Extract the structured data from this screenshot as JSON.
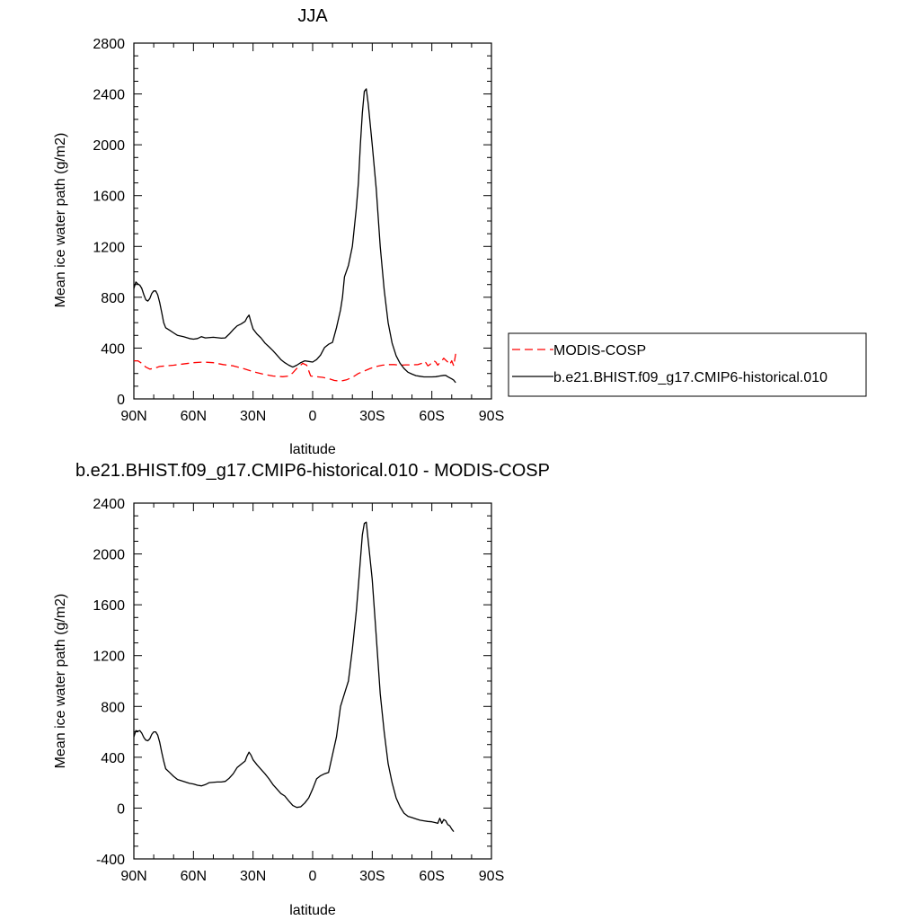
{
  "chart_data": [
    {
      "type": "line",
      "title": "JJA",
      "xlabel": "latitude",
      "ylabel": "Mean ice water path (g/m2)",
      "xlim": [
        90,
        -90
      ],
      "ylim": [
        0,
        2800
      ],
      "x_ticks": [
        {
          "value": 90,
          "label": "90N"
        },
        {
          "value": 60,
          "label": "60N"
        },
        {
          "value": 30,
          "label": "30N"
        },
        {
          "value": 0,
          "label": "0"
        },
        {
          "value": -30,
          "label": "30S"
        },
        {
          "value": -60,
          "label": "60S"
        },
        {
          "value": -90,
          "label": "90S"
        }
      ],
      "y_ticks": [
        0,
        400,
        800,
        1200,
        1600,
        2000,
        2400,
        2800
      ],
      "grid": false,
      "legend": {
        "position": "right"
      },
      "series": [
        {
          "name": "MODIS-COSP",
          "color": "#ff0000",
          "dash": "dashed",
          "points": [
            [
              90,
              300
            ],
            [
              88,
              300
            ],
            [
              86,
              280
            ],
            [
              84,
              250
            ],
            [
              82,
              235
            ],
            [
              80,
              240
            ],
            [
              77,
              255
            ],
            [
              70,
              265
            ],
            [
              60,
              285
            ],
            [
              55,
              290
            ],
            [
              50,
              285
            ],
            [
              45,
              270
            ],
            [
              40,
              260
            ],
            [
              35,
              240
            ],
            [
              30,
              215
            ],
            [
              25,
              195
            ],
            [
              20,
              180
            ],
            [
              15,
              175
            ],
            [
              12,
              180
            ],
            [
              10,
              205
            ],
            [
              8,
              240
            ],
            [
              5,
              280
            ],
            [
              3,
              265
            ],
            [
              1,
              180
            ],
            [
              -2,
              175
            ],
            [
              -5,
              170
            ],
            [
              -8,
              160
            ],
            [
              -11,
              145
            ],
            [
              -14,
              140
            ],
            [
              -17,
              150
            ],
            [
              -20,
              170
            ],
            [
              -23,
              200
            ],
            [
              -26,
              220
            ],
            [
              -29,
              240
            ],
            [
              -32,
              255
            ],
            [
              -35,
              265
            ],
            [
              -38,
              270
            ],
            [
              -41,
              270
            ],
            [
              -44,
              265
            ],
            [
              -47,
              268
            ],
            [
              -50,
              268
            ],
            [
              -53,
              270
            ],
            [
              -55,
              280
            ],
            [
              -56,
              295
            ],
            [
              -57,
              285
            ],
            [
              -58,
              260
            ],
            [
              -59,
              270
            ],
            [
              -61,
              300
            ],
            [
              -62,
              290
            ],
            [
              -63,
              265
            ],
            [
              -64,
              285
            ],
            [
              -65,
              300
            ],
            [
              -66,
              320
            ],
            [
              -67,
              305
            ],
            [
              -68,
              290
            ],
            [
              -69,
              270
            ],
            [
              -70,
              300
            ],
            [
              -71,
              260
            ],
            [
              -72,
              355
            ]
          ]
        },
        {
          "name": "b.e21.BHIST.f09_g17.CMIP6-historical.010",
          "color": "#000000",
          "dash": "solid",
          "points": [
            [
              90,
              870
            ],
            [
              89,
              920
            ],
            [
              88,
              905
            ],
            [
              87,
              895
            ],
            [
              86,
              870
            ],
            [
              85,
              820
            ],
            [
              84,
              780
            ],
            [
              83,
              770
            ],
            [
              82,
              790
            ],
            [
              81,
              830
            ],
            [
              80,
              850
            ],
            [
              79,
              850
            ],
            [
              78,
              820
            ],
            [
              77,
              760
            ],
            [
              76,
              680
            ],
            [
              75,
              600
            ],
            [
              74,
              560
            ],
            [
              72,
              540
            ],
            [
              70,
              520
            ],
            [
              68,
              500
            ],
            [
              65,
              490
            ],
            [
              62,
              475
            ],
            [
              60,
              470
            ],
            [
              58,
              475
            ],
            [
              56,
              490
            ],
            [
              54,
              480
            ],
            [
              50,
              485
            ],
            [
              46,
              478
            ],
            [
              44,
              480
            ],
            [
              42,
              510
            ],
            [
              40,
              545
            ],
            [
              38,
              575
            ],
            [
              36,
              590
            ],
            [
              34,
              610
            ],
            [
              33,
              640
            ],
            [
              32,
              660
            ],
            [
              31,
              600
            ],
            [
              30,
              550
            ],
            [
              28,
              510
            ],
            [
              26,
              480
            ],
            [
              24,
              440
            ],
            [
              22,
              410
            ],
            [
              20,
              380
            ],
            [
              18,
              345
            ],
            [
              16,
              310
            ],
            [
              14,
              285
            ],
            [
              12,
              265
            ],
            [
              10,
              250
            ],
            [
              8,
              265
            ],
            [
              6,
              285
            ],
            [
              4,
              300
            ],
            [
              2,
              295
            ],
            [
              0,
              290
            ],
            [
              -2,
              310
            ],
            [
              -4,
              345
            ],
            [
              -6,
              405
            ],
            [
              -8,
              430
            ],
            [
              -10,
              445
            ],
            [
              -12,
              560
            ],
            [
              -14,
              700
            ],
            [
              -15,
              800
            ],
            [
              -16,
              960
            ],
            [
              -18,
              1050
            ],
            [
              -20,
              1200
            ],
            [
              -22,
              1500
            ],
            [
              -23,
              1700
            ],
            [
              -24,
              2000
            ],
            [
              -25,
              2250
            ],
            [
              -26,
              2420
            ],
            [
              -27,
              2440
            ],
            [
              -28,
              2320
            ],
            [
              -30,
              2000
            ],
            [
              -32,
              1650
            ],
            [
              -34,
              1200
            ],
            [
              -36,
              860
            ],
            [
              -38,
              600
            ],
            [
              -40,
              440
            ],
            [
              -42,
              340
            ],
            [
              -44,
              280
            ],
            [
              -46,
              240
            ],
            [
              -48,
              210
            ],
            [
              -50,
              195
            ],
            [
              -52,
              183
            ],
            [
              -54,
              178
            ],
            [
              -56,
              173
            ],
            [
              -58,
              173
            ],
            [
              -60,
              173
            ],
            [
              -62,
              175
            ],
            [
              -64,
              180
            ],
            [
              -66,
              185
            ],
            [
              -67,
              185
            ],
            [
              -68,
              175
            ],
            [
              -70,
              158
            ],
            [
              -71,
              148
            ],
            [
              -72,
              128
            ]
          ]
        }
      ]
    },
    {
      "type": "line",
      "title": "b.e21.BHIST.f09_g17.CMIP6-historical.010 - MODIS-COSP",
      "xlabel": "latitude",
      "ylabel": "Mean ice water path (g/m2)",
      "xlim": [
        90,
        -90
      ],
      "ylim": [
        -400,
        2400
      ],
      "x_ticks": [
        {
          "value": 90,
          "label": "90N"
        },
        {
          "value": 60,
          "label": "60N"
        },
        {
          "value": 30,
          "label": "30N"
        },
        {
          "value": 0,
          "label": "0"
        },
        {
          "value": -30,
          "label": "30S"
        },
        {
          "value": -60,
          "label": "60S"
        },
        {
          "value": -90,
          "label": "90S"
        }
      ],
      "y_ticks": [
        -400,
        0,
        400,
        800,
        1200,
        1600,
        2000,
        2400
      ],
      "grid": false,
      "series": [
        {
          "color": "#000000",
          "dash": "solid",
          "points": [
            [
              90,
              560
            ],
            [
              89,
              610
            ],
            [
              88,
              605
            ],
            [
              87,
              610
            ],
            [
              86,
              590
            ],
            [
              85,
              555
            ],
            [
              84,
              535
            ],
            [
              83,
              530
            ],
            [
              82,
              545
            ],
            [
              81,
              580
            ],
            [
              80,
              600
            ],
            [
              79,
              600
            ],
            [
              78,
              575
            ],
            [
              77,
              520
            ],
            [
              76,
              440
            ],
            [
              75,
              370
            ],
            [
              74,
              310
            ],
            [
              72,
              280
            ],
            [
              70,
              250
            ],
            [
              68,
              225
            ],
            [
              65,
              210
            ],
            [
              62,
              195
            ],
            [
              60,
              190
            ],
            [
              58,
              180
            ],
            [
              56,
              175
            ],
            [
              54,
              185
            ],
            [
              52,
              200
            ],
            [
              48,
              205
            ],
            [
              46,
              205
            ],
            [
              44,
              210
            ],
            [
              42,
              235
            ],
            [
              40,
              270
            ],
            [
              38,
              320
            ],
            [
              36,
              345
            ],
            [
              34,
              370
            ],
            [
              33,
              410
            ],
            [
              32,
              440
            ],
            [
              31,
              415
            ],
            [
              30,
              380
            ],
            [
              28,
              340
            ],
            [
              26,
              305
            ],
            [
              24,
              270
            ],
            [
              22,
              230
            ],
            [
              20,
              185
            ],
            [
              18,
              150
            ],
            [
              16,
              115
            ],
            [
              14,
              95
            ],
            [
              12,
              55
            ],
            [
              10,
              20
            ],
            [
              8,
              5
            ],
            [
              6,
              10
            ],
            [
              4,
              40
            ],
            [
              2,
              80
            ],
            [
              0,
              150
            ],
            [
              -2,
              230
            ],
            [
              -4,
              255
            ],
            [
              -6,
              270
            ],
            [
              -8,
              280
            ],
            [
              -10,
              420
            ],
            [
              -12,
              560
            ],
            [
              -14,
              800
            ],
            [
              -16,
              900
            ],
            [
              -18,
              1000
            ],
            [
              -20,
              1250
            ],
            [
              -22,
              1550
            ],
            [
              -23,
              1750
            ],
            [
              -24,
              1950
            ],
            [
              -25,
              2150
            ],
            [
              -26,
              2240
            ],
            [
              -27,
              2250
            ],
            [
              -28,
              2100
            ],
            [
              -30,
              1800
            ],
            [
              -32,
              1350
            ],
            [
              -34,
              900
            ],
            [
              -36,
              600
            ],
            [
              -38,
              350
            ],
            [
              -40,
              200
            ],
            [
              -42,
              80
            ],
            [
              -44,
              10
            ],
            [
              -46,
              -40
            ],
            [
              -48,
              -65
            ],
            [
              -50,
              -75
            ],
            [
              -52,
              -85
            ],
            [
              -54,
              -95
            ],
            [
              -56,
              -100
            ],
            [
              -58,
              -105
            ],
            [
              -60,
              -108
            ],
            [
              -62,
              -115
            ],
            [
              -63,
              -120
            ],
            [
              -64,
              -80
            ],
            [
              -65,
              -120
            ],
            [
              -66,
              -90
            ],
            [
              -67,
              -100
            ],
            [
              -68,
              -130
            ],
            [
              -69,
              -140
            ],
            [
              -70,
              -165
            ],
            [
              -71,
              -185
            ]
          ]
        }
      ]
    }
  ]
}
